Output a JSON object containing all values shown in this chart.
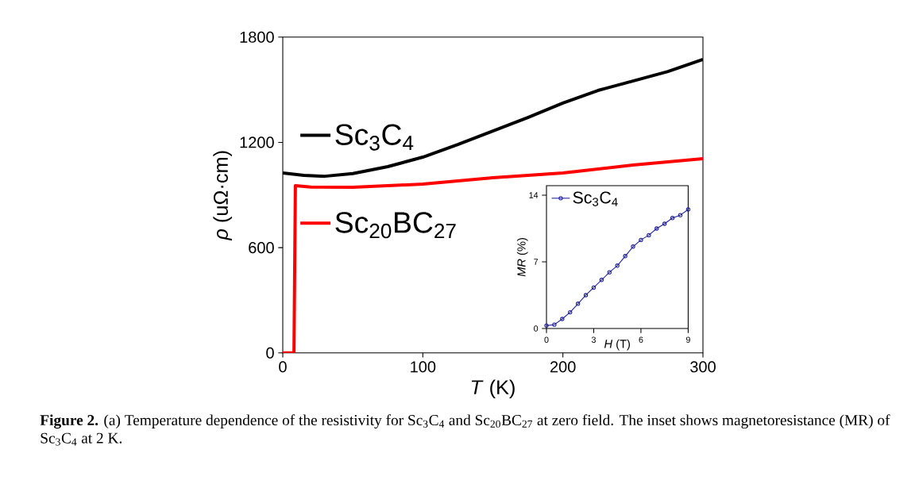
{
  "chart_data": [
    {
      "type": "line",
      "xlabel": "*T* (K)",
      "ylabel": "*ρ* (uΩ·cm)",
      "xlim": [
        0,
        300
      ],
      "ylim": [
        0,
        1800
      ],
      "xticks": [
        0,
        100,
        200,
        300
      ],
      "yticks": [
        0,
        600,
        1200,
        1800
      ],
      "legend": "left",
      "series": [
        {
          "name": "Sc$_{3}$C$_{4}$",
          "color": "#000000",
          "x": [
            0,
            15,
            30,
            50,
            75,
            100,
            125,
            150,
            175,
            200,
            225,
            250,
            275,
            300
          ],
          "values": [
            1026,
            1012,
            1007,
            1022,
            1062,
            1116,
            1188,
            1265,
            1342,
            1424,
            1496,
            1550,
            1604,
            1673
          ]
        },
        {
          "name": "Sc$_{20}$BC$_{27}$",
          "color": "#ff0000",
          "x": [
            0,
            8,
            9,
            20,
            50,
            100,
            150,
            200,
            250,
            300
          ],
          "values": [
            0,
            0,
            953,
            945,
            944,
            962,
            999,
            1026,
            1071,
            1107
          ]
        }
      ],
      "annotations": [
        "**Figure 2.** (a) Temperature dependence of the resistivity for Sc$_{3}$C$_{4}$ and Sc$_{20}$BC$_{27}$ at zero field. The inset shows magnetoresistance (MR) of Sc$_{3}$C$_{4}$ at 2 K."
      ]
    },
    {
      "type": "line",
      "xlabel": "*H* (T)",
      "ylabel": "*MR* (%)",
      "xlim": [
        0,
        9
      ],
      "ylim": [
        0,
        15
      ],
      "xticks": [
        0,
        3,
        6,
        9
      ],
      "yticks": [
        0,
        7,
        14
      ],
      "legend": "top left",
      "marker": "circle",
      "series": [
        {
          "name": "Sc$_{3}$C$_{4}$",
          "color": "#20209a",
          "x": [
            0,
            0.5,
            1,
            1.5,
            2,
            2.5,
            3,
            3.5,
            4,
            4.5,
            5,
            5.5,
            6,
            6.5,
            7,
            7.5,
            8,
            8.5,
            9
          ],
          "values": [
            0.3,
            0.4,
            1.0,
            1.7,
            2.6,
            3.5,
            4.3,
            5.1,
            5.9,
            6.6,
            7.6,
            8.6,
            9.3,
            9.8,
            10.5,
            11.0,
            11.6,
            11.9,
            12.5
          ]
        }
      ]
    }
  ]
}
